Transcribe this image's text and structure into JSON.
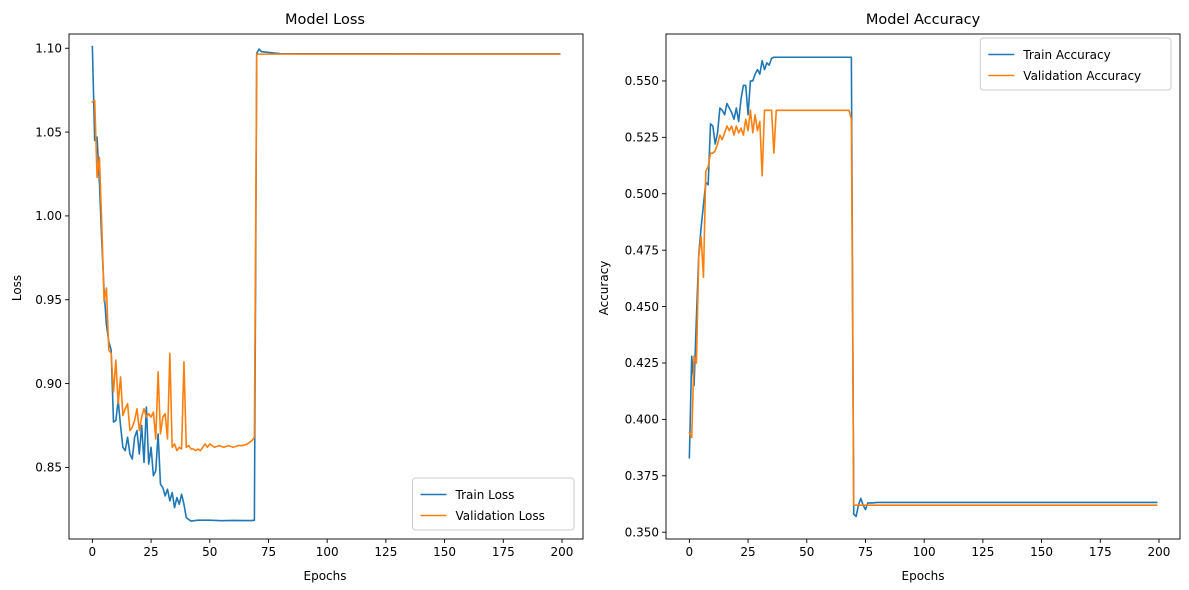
{
  "chart_data": [
    {
      "type": "line",
      "title": "Model Loss",
      "xlabel": "Epochs",
      "ylabel": "Loss",
      "xlim": [
        -9.95,
        208.95
      ],
      "ylim": [
        0.8073,
        1.1085
      ],
      "xticks": [
        0,
        25,
        50,
        75,
        100,
        125,
        150,
        175,
        200
      ],
      "yticks": [
        0.85,
        0.9,
        0.95,
        1.0,
        1.05,
        1.1
      ],
      "ytick_labels": [
        "0.85",
        "0.90",
        "0.95",
        "1.00",
        "1.05",
        "1.10"
      ],
      "legend": "lower-right",
      "grid": false,
      "series": [
        {
          "name": "Train Loss",
          "color": "#1f77b4",
          "points": [
            [
              0,
              1.101
            ],
            [
              1,
              1.045
            ],
            [
              2,
              1.047
            ],
            [
              3,
              1.02
            ],
            [
              4,
              0.985
            ],
            [
              5,
              0.955
            ],
            [
              6,
              0.935
            ],
            [
              7,
              0.925
            ],
            [
              8,
              0.92
            ],
            [
              9,
              0.877
            ],
            [
              10,
              0.878
            ],
            [
              11,
              0.89
            ],
            [
              12,
              0.875
            ],
            [
              13,
              0.862
            ],
            [
              14,
              0.86
            ],
            [
              15,
              0.868
            ],
            [
              16,
              0.858
            ],
            [
              17,
              0.855
            ],
            [
              18,
              0.868
            ],
            [
              19,
              0.872
            ],
            [
              20,
              0.858
            ],
            [
              21,
              0.875
            ],
            [
              22,
              0.853
            ],
            [
              23,
              0.886
            ],
            [
              24,
              0.852
            ],
            [
              25,
              0.862
            ],
            [
              26,
              0.845
            ],
            [
              27,
              0.848
            ],
            [
              28,
              0.87
            ],
            [
              29,
              0.84
            ],
            [
              30,
              0.838
            ],
            [
              31,
              0.833
            ],
            [
              32,
              0.837
            ],
            [
              33,
              0.83
            ],
            [
              34,
              0.835
            ],
            [
              35,
              0.826
            ],
            [
              36,
              0.832
            ],
            [
              37,
              0.828
            ],
            [
              38,
              0.834
            ],
            [
              39,
              0.828
            ],
            [
              40,
              0.82
            ],
            [
              41,
              0.819
            ],
            [
              42,
              0.818
            ],
            [
              45,
              0.8185
            ],
            [
              50,
              0.8185
            ],
            [
              55,
              0.8182
            ],
            [
              60,
              0.8184
            ],
            [
              65,
              0.8183
            ],
            [
              68,
              0.8183
            ],
            [
              69,
              0.8185
            ],
            [
              70,
              1.097
            ],
            [
              71,
              1.0995
            ],
            [
              72,
              1.098
            ],
            [
              75,
              1.0975
            ],
            [
              80,
              1.0968
            ],
            [
              90,
              1.0967
            ],
            [
              100,
              1.0967
            ],
            [
              150,
              1.0966
            ],
            [
              199,
              1.0966
            ]
          ]
        },
        {
          "name": "Validation Loss",
          "color": "#ff7f0e",
          "points": [
            [
              0,
              1.068
            ],
            [
              1,
              1.069
            ],
            [
              2,
              1.023
            ],
            [
              3,
              1.035
            ],
            [
              4,
              0.995
            ],
            [
              5,
              0.949
            ],
            [
              6,
              0.957
            ],
            [
              7,
              0.92
            ],
            [
              8,
              0.918
            ],
            [
              9,
              0.895
            ],
            [
              10,
              0.914
            ],
            [
              11,
              0.888
            ],
            [
              12,
              0.904
            ],
            [
              13,
              0.881
            ],
            [
              14,
              0.885
            ],
            [
              15,
              0.888
            ],
            [
              16,
              0.872
            ],
            [
              17,
              0.874
            ],
            [
              18,
              0.878
            ],
            [
              19,
              0.885
            ],
            [
              20,
              0.872
            ],
            [
              21,
              0.88
            ],
            [
              22,
              0.885
            ],
            [
              23,
              0.88
            ],
            [
              24,
              0.882
            ],
            [
              25,
              0.88
            ],
            [
              26,
              0.883
            ],
            [
              27,
              0.867
            ],
            [
              28,
              0.907
            ],
            [
              29,
              0.87
            ],
            [
              30,
              0.88
            ],
            [
              31,
              0.882
            ],
            [
              32,
              0.867
            ],
            [
              33,
              0.918
            ],
            [
              34,
              0.862
            ],
            [
              35,
              0.864
            ],
            [
              36,
              0.86
            ],
            [
              37,
              0.862
            ],
            [
              38,
              0.861
            ],
            [
              39,
              0.913
            ],
            [
              40,
              0.862
            ],
            [
              41,
              0.863
            ],
            [
              42,
              0.861
            ],
            [
              43,
              0.861
            ],
            [
              44,
              0.86
            ],
            [
              45,
              0.861
            ],
            [
              46,
              0.86
            ],
            [
              47,
              0.862
            ],
            [
              48,
              0.864
            ],
            [
              49,
              0.862
            ],
            [
              50,
              0.864
            ],
            [
              52,
              0.862
            ],
            [
              54,
              0.863
            ],
            [
              56,
              0.862
            ],
            [
              58,
              0.863
            ],
            [
              60,
              0.862
            ],
            [
              62,
              0.863
            ],
            [
              64,
              0.863
            ],
            [
              66,
              0.864
            ],
            [
              68,
              0.866
            ],
            [
              69,
              0.868
            ],
            [
              70,
              1.0965
            ],
            [
              75,
              1.0965
            ],
            [
              100,
              1.0965
            ],
            [
              150,
              1.0965
            ],
            [
              199,
              1.0965
            ]
          ]
        }
      ]
    },
    {
      "type": "line",
      "title": "Model Accuracy",
      "xlabel": "Epochs",
      "ylabel": "Accuracy",
      "xlim": [
        -9.95,
        208.95
      ],
      "ylim": [
        0.347,
        0.5708
      ],
      "xticks": [
        0,
        25,
        50,
        75,
        100,
        125,
        150,
        175,
        200
      ],
      "yticks": [
        0.35,
        0.375,
        0.4,
        0.425,
        0.45,
        0.475,
        0.5,
        0.525,
        0.55
      ],
      "ytick_labels": [
        "0.350",
        "0.375",
        "0.400",
        "0.425",
        "0.450",
        "0.475",
        "0.500",
        "0.525",
        "0.550"
      ],
      "legend": "top-right",
      "grid": false,
      "series": [
        {
          "name": "Train Accuracy",
          "color": "#1f77b4",
          "points": [
            [
              0,
              0.383
            ],
            [
              1,
              0.428
            ],
            [
              2,
              0.415
            ],
            [
              3,
              0.445
            ],
            [
              4,
              0.473
            ],
            [
              5,
              0.485
            ],
            [
              6,
              0.495
            ],
            [
              7,
              0.505
            ],
            [
              8,
              0.504
            ],
            [
              9,
              0.531
            ],
            [
              10,
              0.53
            ],
            [
              11,
              0.522
            ],
            [
              12,
              0.527
            ],
            [
              13,
              0.538
            ],
            [
              14,
              0.537
            ],
            [
              15,
              0.535
            ],
            [
              16,
              0.54
            ],
            [
              17,
              0.538
            ],
            [
              18,
              0.536
            ],
            [
              19,
              0.533
            ],
            [
              20,
              0.538
            ],
            [
              21,
              0.532
            ],
            [
              22,
              0.542
            ],
            [
              23,
              0.548
            ],
            [
              24,
              0.548
            ],
            [
              25,
              0.535
            ],
            [
              26,
              0.55
            ],
            [
              27,
              0.55
            ],
            [
              28,
              0.553
            ],
            [
              29,
              0.555
            ],
            [
              30,
              0.553
            ],
            [
              31,
              0.559
            ],
            [
              32,
              0.555
            ],
            [
              33,
              0.558
            ],
            [
              34,
              0.557
            ],
            [
              35,
              0.56
            ],
            [
              36,
              0.5605
            ],
            [
              40,
              0.5605
            ],
            [
              50,
              0.5605
            ],
            [
              60,
              0.5605
            ],
            [
              68,
              0.5605
            ],
            [
              69,
              0.5605
            ],
            [
              70,
              0.358
            ],
            [
              71,
              0.357
            ],
            [
              72,
              0.362
            ],
            [
              73,
              0.365
            ],
            [
              74,
              0.362
            ],
            [
              75,
              0.36
            ],
            [
              76,
              0.363
            ],
            [
              78,
              0.363
            ],
            [
              80,
              0.3632
            ],
            [
              100,
              0.3632
            ],
            [
              150,
              0.3632
            ],
            [
              199,
              0.3632
            ]
          ]
        },
        {
          "name": "Validation Accuracy",
          "color": "#ff7f0e",
          "points": [
            [
              0,
              0.394
            ],
            [
              1,
              0.392
            ],
            [
              2,
              0.428
            ],
            [
              3,
              0.425
            ],
            [
              4,
              0.472
            ],
            [
              5,
              0.481
            ],
            [
              6,
              0.463
            ],
            [
              7,
              0.51
            ],
            [
              8,
              0.512
            ],
            [
              9,
              0.518
            ],
            [
              10,
              0.518
            ],
            [
              11,
              0.519
            ],
            [
              12,
              0.522
            ],
            [
              13,
              0.526
            ],
            [
              14,
              0.524
            ],
            [
              15,
              0.527
            ],
            [
              16,
              0.53
            ],
            [
              17,
              0.528
            ],
            [
              18,
              0.53
            ],
            [
              19,
              0.526
            ],
            [
              20,
              0.53
            ],
            [
              21,
              0.527
            ],
            [
              22,
              0.529
            ],
            [
              23,
              0.526
            ],
            [
              24,
              0.533
            ],
            [
              25,
              0.528
            ],
            [
              26,
              0.537
            ],
            [
              27,
              0.527
            ],
            [
              28,
              0.535
            ],
            [
              29,
              0.528
            ],
            [
              30,
              0.532
            ],
            [
              31,
              0.508
            ],
            [
              32,
              0.537
            ],
            [
              33,
              0.537
            ],
            [
              34,
              0.537
            ],
            [
              35,
              0.537
            ],
            [
              36,
              0.518
            ],
            [
              37,
              0.537
            ],
            [
              40,
              0.537
            ],
            [
              50,
              0.537
            ],
            [
              60,
              0.537
            ],
            [
              68,
              0.537
            ],
            [
              69,
              0.533
            ],
            [
              70,
              0.362
            ],
            [
              75,
              0.362
            ],
            [
              100,
              0.362
            ],
            [
              150,
              0.362
            ],
            [
              199,
              0.362
            ]
          ]
        }
      ]
    }
  ]
}
